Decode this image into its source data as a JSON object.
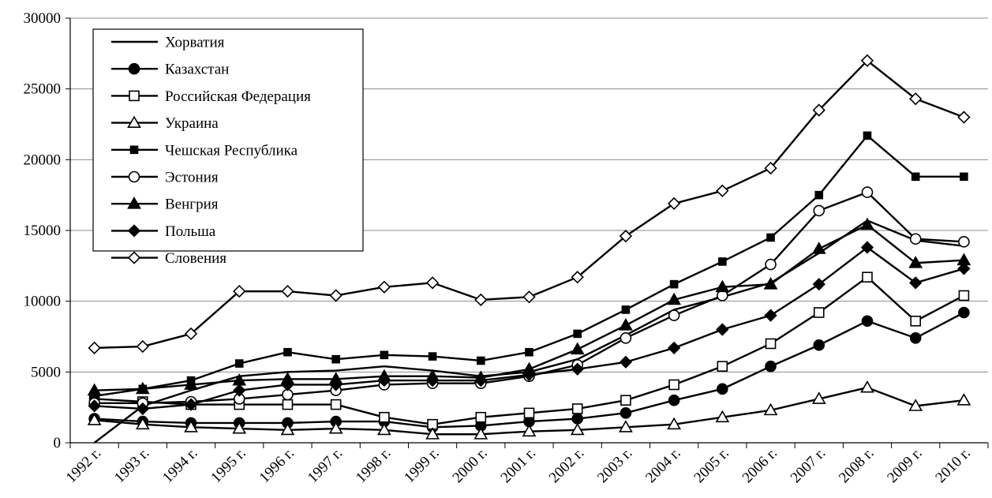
{
  "chart_data": {
    "type": "line",
    "ylim": [
      0,
      30000
    ],
    "yticks": [
      "0",
      "5000",
      "10000",
      "15000",
      "20000",
      "25000",
      "30000"
    ],
    "ytick_values": [
      0,
      5000,
      10000,
      15000,
      20000,
      25000,
      30000
    ],
    "grid": "horizontal",
    "legend_position": "top-left",
    "categories": [
      "1992 г.",
      "1993 г.",
      "1994 г.",
      "1995 г.",
      "1996 г.",
      "1997 г.",
      "1998 г.",
      "1999 г.",
      "2000 г.",
      "2001 г.",
      "2002 г.",
      "2003 г.",
      "2004 г.",
      "2005 г.",
      "2006 г.",
      "2007 г.",
      "2008 г.",
      "2009 г.",
      "2010 г."
    ],
    "series": [
      {
        "name": "Хорватия",
        "marker": "none",
        "values": [
          0,
          2600,
          3700,
          4700,
          5000,
          5100,
          5400,
          5100,
          4700,
          5000,
          5900,
          7600,
          9400,
          10300,
          11300,
          13400,
          15700,
          14300,
          13900
        ]
      },
      {
        "name": "Казахстан",
        "marker": "circle-filled",
        "values": [
          1700,
          1500,
          1400,
          1400,
          1400,
          1500,
          1500,
          1100,
          1200,
          1500,
          1700,
          2100,
          3000,
          3800,
          5400,
          6900,
          8600,
          7400,
          9200
        ]
      },
      {
        "name": "Российская Федерация",
        "marker": "square-open",
        "values": [
          3100,
          2900,
          2700,
          2700,
          2700,
          2700,
          1800,
          1300,
          1800,
          2100,
          2400,
          3000,
          4100,
          5400,
          7000,
          9200,
          11700,
          8600,
          10400
        ]
      },
      {
        "name": "Украина",
        "marker": "triangle-open",
        "values": [
          1600,
          1300,
          1100,
          1000,
          900,
          1000,
          900,
          600,
          600,
          800,
          900,
          1100,
          1300,
          1800,
          2300,
          3100,
          3900,
          2600,
          3000
        ]
      },
      {
        "name": "Чешская Республика",
        "marker": "square-filled",
        "values": [
          3300,
          3800,
          4400,
          5600,
          6400,
          5900,
          6200,
          6100,
          5800,
          6400,
          7700,
          9400,
          11200,
          12800,
          14500,
          17500,
          21700,
          18800,
          18800
        ]
      },
      {
        "name": "Эстония",
        "marker": "circle-open",
        "values": [
          2800,
          2800,
          2900,
          3100,
          3400,
          3700,
          4100,
          4200,
          4200,
          4700,
          5500,
          7400,
          9000,
          10400,
          12600,
          16400,
          17700,
          14400,
          14200
        ]
      },
      {
        "name": "Венгрия",
        "marker": "triangle-filled",
        "values": [
          3700,
          3800,
          4100,
          4400,
          4500,
          4500,
          4700,
          4700,
          4600,
          5200,
          6600,
          8300,
          10100,
          11000,
          11200,
          13700,
          15400,
          12700,
          12900
        ]
      },
      {
        "name": "Польша",
        "marker": "diamond-filled",
        "values": [
          2600,
          2400,
          2700,
          3700,
          4100,
          4100,
          4400,
          4400,
          4400,
          4800,
          5200,
          5700,
          6700,
          8000,
          9000,
          11200,
          13800,
          11300,
          12300
        ]
      },
      {
        "name": "Словения",
        "marker": "diamond-open",
        "values": [
          6700,
          6800,
          7700,
          10700,
          10700,
          10400,
          11000,
          11300,
          10100,
          10300,
          11700,
          14600,
          16900,
          17800,
          19400,
          23500,
          27000,
          24300,
          23000
        ]
      }
    ]
  }
}
